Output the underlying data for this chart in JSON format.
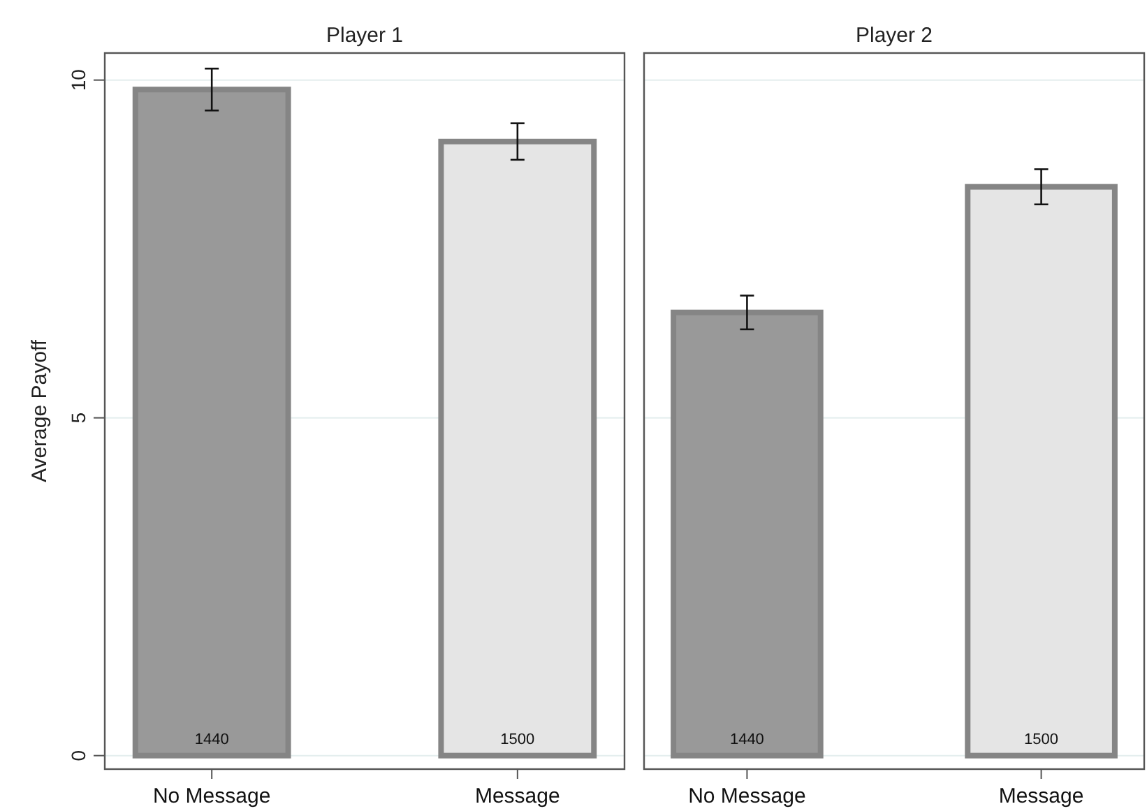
{
  "chart_data": [
    {
      "type": "bar",
      "title": "Player 1",
      "ylabel": "Average Payoff",
      "categories": [
        "No Message",
        "Message"
      ],
      "values": [
        9.86,
        9.09
      ],
      "colors": [
        "#999999",
        "#e5e5e5"
      ],
      "errors": [
        0.31,
        0.27
      ],
      "ylim": [
        -0.2,
        10.4
      ],
      "yticks": [
        0,
        5,
        10
      ],
      "grid": "y",
      "annotations": [
        "1440",
        "1500"
      ]
    },
    {
      "type": "bar",
      "title": "Player 2",
      "categories": [
        "No Message",
        "Message"
      ],
      "values": [
        6.56,
        8.42
      ],
      "colors": [
        "#999999",
        "#e5e5e5"
      ],
      "errors": [
        0.25,
        0.26
      ],
      "ylim": [
        -0.2,
        10.4
      ],
      "yticks": [
        0,
        5,
        10
      ],
      "grid": "y",
      "tick_labels": "x",
      "annotations": [
        "1440",
        "1500"
      ]
    }
  ]
}
